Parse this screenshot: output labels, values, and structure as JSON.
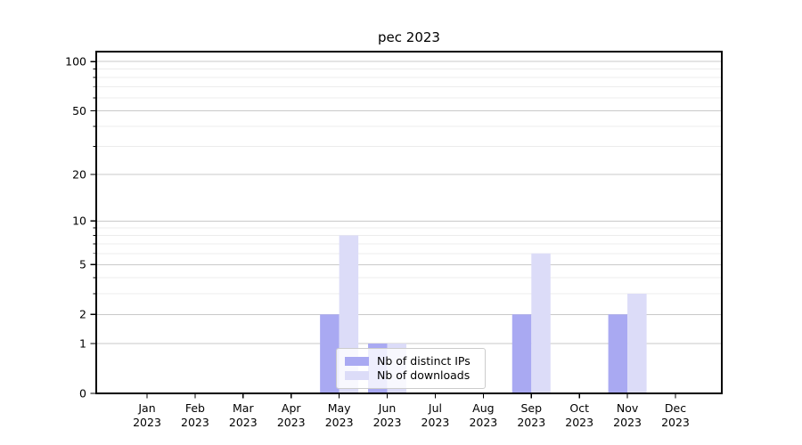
{
  "title": "pec 2023",
  "legend": {
    "items": [
      {
        "label": "Nb of distinct IPs"
      },
      {
        "label": "Nb of downloads"
      }
    ]
  },
  "chart_data": {
    "type": "bar",
    "title": "pec 2023",
    "categories": [
      "Jan",
      "Feb",
      "Mar",
      "Apr",
      "May",
      "Jun",
      "Jul",
      "Aug",
      "Sep",
      "Oct",
      "Nov",
      "Dec"
    ],
    "category_year": "2023",
    "series": [
      {
        "name": "Nb of distinct IPs",
        "color": "#a9a9f2",
        "values": [
          0,
          0,
          0,
          0,
          2,
          1,
          0,
          0,
          2,
          0,
          2,
          0
        ]
      },
      {
        "name": "Nb of downloads",
        "color": "#dcdcf8",
        "values": [
          0,
          0,
          0,
          0,
          8,
          1,
          0,
          0,
          6,
          0,
          3,
          0
        ]
      }
    ],
    "yscale": "log1p",
    "ylim": [
      0,
      115
    ],
    "yticks": [
      0,
      1,
      2,
      5,
      10,
      20,
      50,
      100
    ],
    "yticks_minor": [
      3,
      4,
      6,
      7,
      8,
      9,
      30,
      40,
      60,
      70,
      80,
      90
    ],
    "grid": true,
    "legend_position": "lower-center"
  }
}
